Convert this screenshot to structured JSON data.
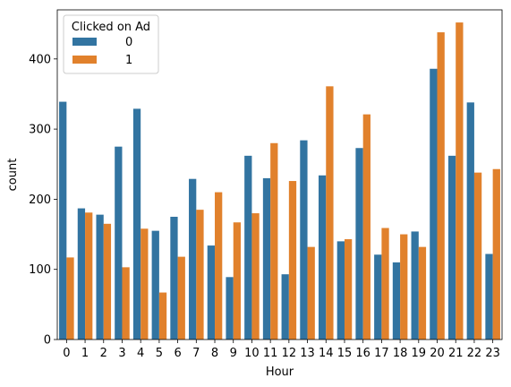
{
  "chart_data": {
    "type": "bar",
    "xlabel": "Hour",
    "ylabel": "count",
    "ylim": [
      0,
      470
    ],
    "yticks": [
      0,
      100,
      200,
      300,
      400
    ],
    "categories": [
      "0",
      "1",
      "2",
      "3",
      "4",
      "5",
      "6",
      "7",
      "8",
      "9",
      "10",
      "11",
      "12",
      "13",
      "14",
      "15",
      "16",
      "17",
      "18",
      "19",
      "20",
      "21",
      "22",
      "23"
    ],
    "legend": {
      "title": "Clicked on Ad",
      "placement": "top-left"
    },
    "series": [
      {
        "name": "0",
        "color": "#3274a1",
        "values": [
          339,
          187,
          178,
          275,
          329,
          155,
          175,
          229,
          134,
          89,
          262,
          230,
          93,
          284,
          234,
          140,
          273,
          121,
          110,
          154,
          386,
          262,
          338,
          122
        ]
      },
      {
        "name": "1",
        "color": "#e1812c",
        "values": [
          117,
          181,
          165,
          103,
          158,
          67,
          118,
          185,
          210,
          167,
          180,
          280,
          226,
          132,
          361,
          143,
          321,
          159,
          150,
          132,
          438,
          452,
          238,
          243
        ]
      }
    ]
  }
}
